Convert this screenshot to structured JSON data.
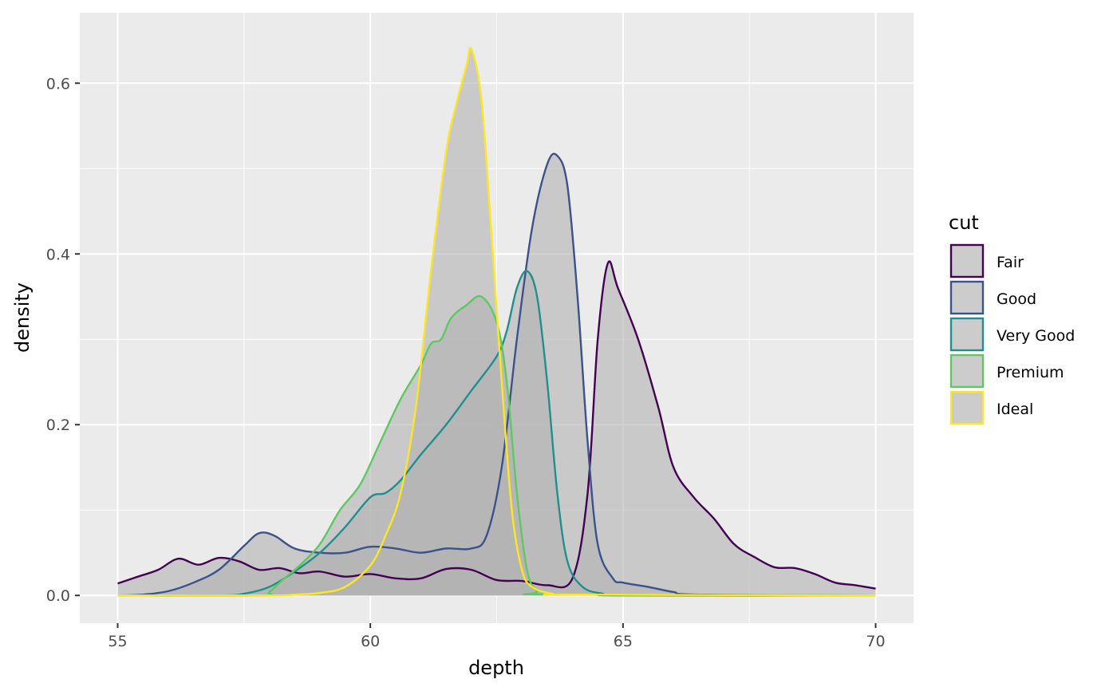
{
  "chart_data": {
    "type": "area",
    "title": "",
    "xlabel": "depth",
    "ylabel": "density",
    "xlim": [
      54.25,
      70.75
    ],
    "ylim": [
      -0.0325,
      0.6825
    ],
    "x_ticks": [
      55,
      60,
      65,
      70
    ],
    "x_tick_labels": [
      "55",
      "60",
      "65",
      "70"
    ],
    "y_ticks": [
      0.0,
      0.2,
      0.4,
      0.6
    ],
    "y_tick_labels": [
      "0.0",
      "0.2",
      "0.4",
      "0.6"
    ],
    "grid": true,
    "fill_color": "#b3b3b3",
    "fill_opacity": 0.6,
    "legend": {
      "title": "cut",
      "position": "right"
    },
    "series": [
      {
        "name": "Fair",
        "color": "#440154",
        "points": [
          [
            55,
            0.014
          ],
          [
            55.4,
            0.022
          ],
          [
            55.8,
            0.03
          ],
          [
            56.2,
            0.043
          ],
          [
            56.6,
            0.036
          ],
          [
            57.0,
            0.044
          ],
          [
            57.4,
            0.04
          ],
          [
            57.8,
            0.03
          ],
          [
            58.2,
            0.032
          ],
          [
            58.6,
            0.026
          ],
          [
            59.0,
            0.028
          ],
          [
            59.5,
            0.022
          ],
          [
            60.0,
            0.025
          ],
          [
            60.5,
            0.02
          ],
          [
            61.0,
            0.02
          ],
          [
            61.5,
            0.031
          ],
          [
            62.0,
            0.03
          ],
          [
            62.5,
            0.018
          ],
          [
            63.0,
            0.017
          ],
          [
            63.5,
            0.012
          ],
          [
            64.0,
            0.02
          ],
          [
            64.3,
            0.12
          ],
          [
            64.5,
            0.3
          ],
          [
            64.7,
            0.389
          ],
          [
            64.9,
            0.36
          ],
          [
            65.3,
            0.3
          ],
          [
            65.7,
            0.22
          ],
          [
            66.0,
            0.15
          ],
          [
            66.4,
            0.115
          ],
          [
            66.8,
            0.09
          ],
          [
            67.2,
            0.06
          ],
          [
            67.6,
            0.045
          ],
          [
            68.0,
            0.033
          ],
          [
            68.4,
            0.032
          ],
          [
            68.8,
            0.025
          ],
          [
            69.2,
            0.015
          ],
          [
            69.6,
            0.012
          ],
          [
            70,
            0.008
          ]
        ]
      },
      {
        "name": "Good",
        "color": "#3b528b",
        "points": [
          [
            55,
            0.0
          ],
          [
            55.5,
            0.001
          ],
          [
            56.0,
            0.005
          ],
          [
            56.5,
            0.015
          ],
          [
            57.0,
            0.03
          ],
          [
            57.5,
            0.058
          ],
          [
            57.8,
            0.073
          ],
          [
            58.1,
            0.07
          ],
          [
            58.5,
            0.055
          ],
          [
            59.0,
            0.05
          ],
          [
            59.5,
            0.05
          ],
          [
            60.0,
            0.057
          ],
          [
            60.5,
            0.055
          ],
          [
            61.0,
            0.05
          ],
          [
            61.5,
            0.055
          ],
          [
            62.0,
            0.055
          ],
          [
            62.3,
            0.07
          ],
          [
            62.6,
            0.15
          ],
          [
            62.9,
            0.3
          ],
          [
            63.2,
            0.43
          ],
          [
            63.5,
            0.505
          ],
          [
            63.7,
            0.515
          ],
          [
            63.9,
            0.48
          ],
          [
            64.1,
            0.35
          ],
          [
            64.3,
            0.18
          ],
          [
            64.5,
            0.06
          ],
          [
            64.8,
            0.02
          ],
          [
            65.0,
            0.015
          ],
          [
            65.5,
            0.01
          ],
          [
            66.0,
            0.004
          ],
          [
            66.5,
            0.001
          ],
          [
            70,
            0.0
          ]
        ]
      },
      {
        "name": "Very Good",
        "color": "#21908c",
        "points": [
          [
            55,
            0.0
          ],
          [
            57.0,
            0.0
          ],
          [
            57.5,
            0.002
          ],
          [
            58.0,
            0.01
          ],
          [
            58.5,
            0.028
          ],
          [
            59.0,
            0.05
          ],
          [
            59.5,
            0.08
          ],
          [
            60.0,
            0.115
          ],
          [
            60.3,
            0.12
          ],
          [
            60.6,
            0.135
          ],
          [
            61.0,
            0.165
          ],
          [
            61.5,
            0.2
          ],
          [
            62.0,
            0.24
          ],
          [
            62.5,
            0.28
          ],
          [
            62.7,
            0.31
          ],
          [
            62.9,
            0.36
          ],
          [
            63.1,
            0.38
          ],
          [
            63.3,
            0.35
          ],
          [
            63.5,
            0.25
          ],
          [
            63.7,
            0.12
          ],
          [
            63.9,
            0.04
          ],
          [
            64.2,
            0.01
          ],
          [
            64.6,
            0.002
          ],
          [
            65.0,
            0.0
          ],
          [
            70,
            0.0
          ]
        ]
      },
      {
        "name": "Premium",
        "color": "#5ec962",
        "points": [
          [
            55,
            0.0
          ],
          [
            57.8,
            0.0
          ],
          [
            58.0,
            0.004
          ],
          [
            58.3,
            0.02
          ],
          [
            58.6,
            0.035
          ],
          [
            59.0,
            0.06
          ],
          [
            59.4,
            0.1
          ],
          [
            59.8,
            0.13
          ],
          [
            60.2,
            0.18
          ],
          [
            60.6,
            0.23
          ],
          [
            61.0,
            0.27
          ],
          [
            61.2,
            0.295
          ],
          [
            61.4,
            0.3
          ],
          [
            61.6,
            0.325
          ],
          [
            61.9,
            0.34
          ],
          [
            62.2,
            0.35
          ],
          [
            62.5,
            0.32
          ],
          [
            62.7,
            0.25
          ],
          [
            62.9,
            0.12
          ],
          [
            63.1,
            0.03
          ],
          [
            63.3,
            0.005
          ],
          [
            63.6,
            0.001
          ],
          [
            70,
            0.0
          ]
        ]
      },
      {
        "name": "Ideal",
        "color": "#fde725",
        "points": [
          [
            55,
            0.0
          ],
          [
            58.0,
            0.0
          ],
          [
            58.5,
            0.001
          ],
          [
            59.0,
            0.003
          ],
          [
            59.5,
            0.01
          ],
          [
            60.0,
            0.035
          ],
          [
            60.3,
            0.07
          ],
          [
            60.6,
            0.12
          ],
          [
            60.9,
            0.22
          ],
          [
            61.2,
            0.38
          ],
          [
            61.5,
            0.52
          ],
          [
            61.7,
            0.575
          ],
          [
            61.9,
            0.62
          ],
          [
            62.0,
            0.64
          ],
          [
            62.2,
            0.58
          ],
          [
            62.4,
            0.42
          ],
          [
            62.6,
            0.25
          ],
          [
            62.8,
            0.1
          ],
          [
            63.0,
            0.03
          ],
          [
            63.2,
            0.01
          ],
          [
            63.6,
            0.002
          ],
          [
            64.0,
            0.001
          ],
          [
            70,
            0.0
          ]
        ]
      }
    ]
  }
}
